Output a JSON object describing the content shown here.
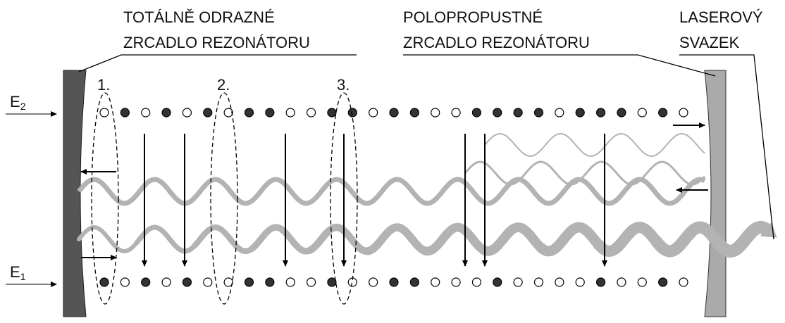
{
  "labels": {
    "left_mirror": [
      "TOTÁLNĚ ODRAZNÉ",
      "ZRCADLO REZONÁTORU"
    ],
    "right_mirror": [
      "POLOPROPUSTNÉ",
      "ZRCADLO REZONÁTORU"
    ],
    "beam": [
      "LASEROVÝ",
      "SVAZEK"
    ]
  },
  "steps": [
    "1.",
    "2.",
    "3."
  ],
  "levels": [
    {
      "letter": "E",
      "index": "2"
    },
    {
      "letter": "E",
      "index": "1"
    }
  ]
}
